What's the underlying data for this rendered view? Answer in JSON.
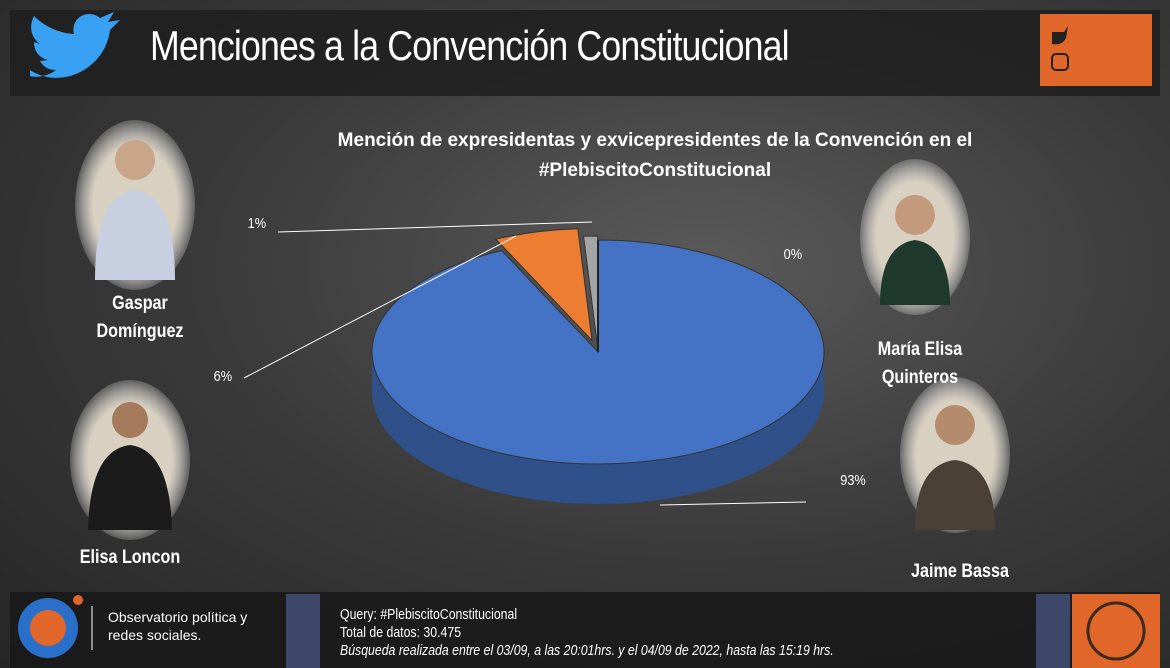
{
  "header": {
    "title": "Menciones a la Convención Constitucional"
  },
  "chart_data": {
    "type": "pie",
    "title": "Mención de expresidentas y exvicepresidentes de la Convención en el #PlebiscitoConstitucional",
    "categories": [
      "Jaime Bassa",
      "Elisa Loncon",
      "Gaspar Domínguez",
      "María Elisa Quinteros"
    ],
    "values": [
      93,
      6,
      1,
      0
    ],
    "value_labels": [
      "93%",
      "6%",
      "1%",
      "0%"
    ],
    "colors": [
      "#4472c4",
      "#ed7d31",
      "#a5a5a5",
      "#ffc000"
    ]
  },
  "footer": {
    "organization": "Observatorio política y redes sociales.",
    "query": "Query: #PlebiscitoConstitucional",
    "total": "Total de datos: 30.475",
    "search": "Búsqueda realizada entre el 03/09, a las 20:01hrs. y el 04/09 de 2022, hasta las 15:19 hrs."
  }
}
